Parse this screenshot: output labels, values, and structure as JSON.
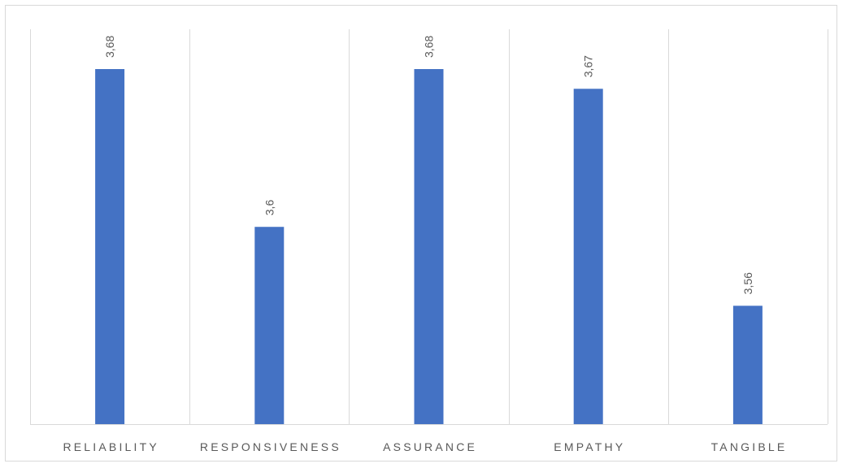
{
  "chart_data": {
    "type": "bar",
    "title": "",
    "xlabel": "",
    "ylabel": "",
    "categories": [
      "RELIABILITY",
      "RESPONSIVENESS",
      "ASSURANCE",
      "EMPATHY",
      "TANGIBLE"
    ],
    "values": [
      3.68,
      3.6,
      3.68,
      3.67,
      3.56
    ],
    "data_labels": [
      "3,68",
      "3,6",
      "3,68",
      "3,67",
      "3,56"
    ],
    "ylim": [
      3.5,
      3.7
    ],
    "y_axis_visible": false,
    "grid": "vertical category separators",
    "legend": "none",
    "bar_color": "#4472c4",
    "grid_color": "#d9d9d9",
    "text_color": "#595959"
  }
}
